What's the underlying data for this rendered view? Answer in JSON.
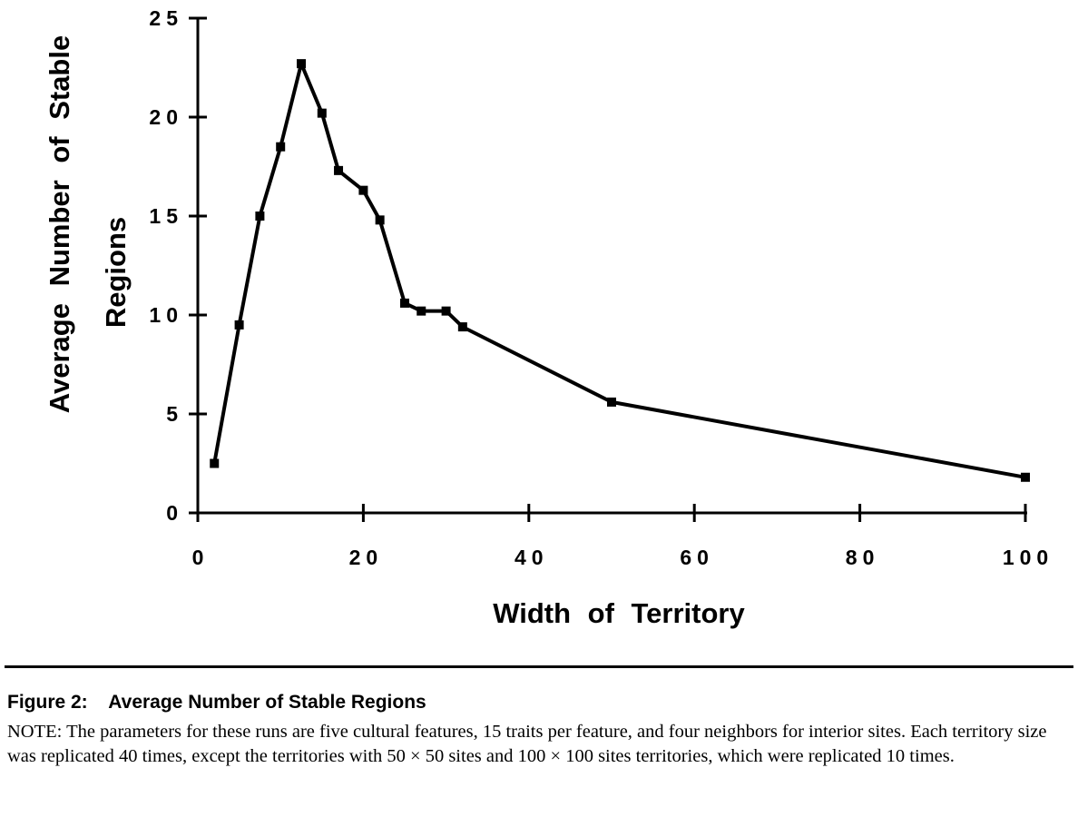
{
  "chart_data": {
    "type": "line",
    "xlabel": "Width of Territory",
    "ylabel_lines": [
      "Average Number of Stable",
      "Regions"
    ],
    "xlim": [
      0,
      100
    ],
    "ylim": [
      0,
      25
    ],
    "x_ticks": [
      0,
      20,
      40,
      60,
      80,
      100
    ],
    "y_ticks": [
      0,
      5,
      10,
      15,
      20,
      25
    ],
    "x_tick_labels": [
      "0",
      "20",
      "40",
      "60",
      "80",
      "100"
    ],
    "y_tick_labels": [
      "0",
      "5",
      "10",
      "15",
      "20",
      "25"
    ],
    "grid": false,
    "series": [
      {
        "x": [
          2,
          5,
          7.5,
          10,
          12.5,
          15,
          17,
          20,
          22,
          25,
          27,
          30,
          32,
          50,
          100
        ],
        "y": [
          2.5,
          9.5,
          15,
          18.5,
          22.7,
          20.2,
          17.3,
          16.3,
          14.8,
          10.6,
          10.2,
          10.2,
          9.4,
          5.6,
          1.8
        ]
      }
    ]
  },
  "caption": {
    "label": "Figure 2:",
    "title": "Average Number of Stable Regions",
    "note": "NOTE: The parameters for these runs are five cultural features, 15 traits per feature, and four neighbors for interior sites. Each territory size was replicated 40 times, except the territories with 50 × 50 sites and 100 × 100 sites territories, which were replicated 10 times."
  }
}
